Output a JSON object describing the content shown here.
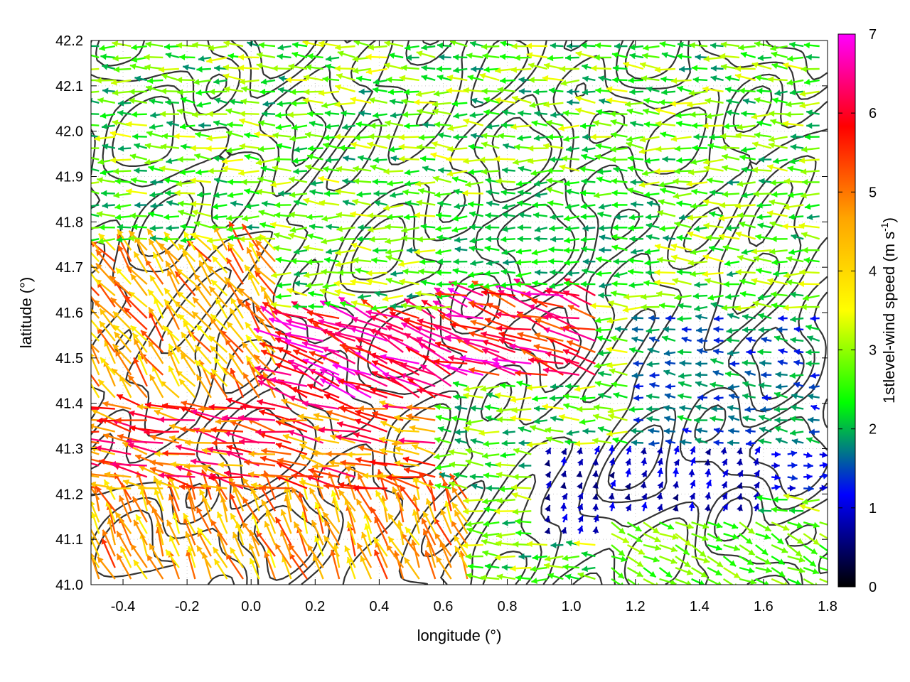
{
  "chart_data": {
    "type": "vector_field_map",
    "x_axis": {
      "label": "longitude (°)",
      "range": [
        -0.5,
        1.8
      ],
      "ticks": [
        -0.4,
        -0.2,
        0.0,
        0.2,
        0.4,
        0.6,
        0.8,
        1.0,
        1.2,
        1.4,
        1.6,
        1.8
      ],
      "tick_labels": [
        "-0.4",
        "-0.2",
        "0.0",
        "0.2",
        "0.4",
        "0.6",
        "0.8",
        "1.0",
        "1.2",
        "1.4",
        "1.6",
        "1.8"
      ]
    },
    "y_axis": {
      "label": "latitude (°)",
      "range": [
        41.0,
        42.2
      ],
      "ticks": [
        41.0,
        41.1,
        41.2,
        41.3,
        41.4,
        41.5,
        41.6,
        41.7,
        41.8,
        41.9,
        42.0,
        42.1,
        42.2
      ],
      "tick_labels": [
        "41.0",
        "41.1",
        "41.2",
        "41.3",
        "41.4",
        "41.5",
        "41.6",
        "41.7",
        "41.8",
        "41.9",
        "42.0",
        "42.1",
        "42.2"
      ]
    },
    "colorbar": {
      "label": "1stlevel-wind speed (m s",
      "label_sup": "-1",
      "label_end": ")",
      "range": [
        0,
        7
      ],
      "ticks": [
        0,
        1,
        2,
        3,
        4,
        5,
        6,
        7
      ],
      "tick_labels": [
        "0",
        "1",
        "2",
        "3",
        "4",
        "5",
        "6",
        "7"
      ],
      "colors": [
        "#000000",
        "#0000ff",
        "#00ff00",
        "#ffff00",
        "#ffa500",
        "#ff0000",
        "#ff00ff"
      ]
    },
    "grid": "dotted",
    "contours": "terrain elevation (dark gray isolines)",
    "wind_regions": [
      {
        "lon": [
          -0.5,
          1.8
        ],
        "lat": [
          41.8,
          42.2
        ],
        "u": -1.0,
        "v": 0.05,
        "speed": [
          1.8,
          3.5
        ]
      },
      {
        "lon": [
          0.6,
          1.3
        ],
        "lat": [
          41.65,
          41.85
        ],
        "u": -1.0,
        "v": 0.0,
        "speed": [
          1.8,
          2.5
        ]
      },
      {
        "lon": [
          -0.5,
          0.1
        ],
        "lat": [
          41.4,
          41.75
        ],
        "u": -0.6,
        "v": 0.8,
        "speed": [
          3.5,
          5.5
        ]
      },
      {
        "lon": [
          0.1,
          0.65
        ],
        "lat": [
          41.4,
          41.6
        ],
        "u": -0.9,
        "v": 0.4,
        "speed": [
          5.5,
          7.0
        ]
      },
      {
        "lon": [
          0.65,
          1.1
        ],
        "lat": [
          41.45,
          41.65
        ],
        "u": -1.0,
        "v": 0.3,
        "speed": [
          5.0,
          7.0
        ]
      },
      {
        "lon": [
          -0.5,
          0.6
        ],
        "lat": [
          41.2,
          41.4
        ],
        "u": -1.0,
        "v": 0.2,
        "speed": [
          4.0,
          6.5
        ]
      },
      {
        "lon": [
          -0.5,
          0.7
        ],
        "lat": [
          41.0,
          41.2
        ],
        "u": -0.4,
        "v": 0.9,
        "speed": [
          3.5,
          5.5
        ]
      },
      {
        "lon": [
          1.2,
          1.8
        ],
        "lat": [
          41.3,
          41.6
        ],
        "u": -1.0,
        "v": 0.1,
        "speed": [
          1.2,
          2.2
        ]
      },
      {
        "lon": [
          0.9,
          1.6
        ],
        "lat": [
          41.1,
          41.3
        ],
        "u": 0.2,
        "v": 0.6,
        "speed": [
          0.5,
          1.2
        ]
      },
      {
        "lon": [
          1.6,
          1.8
        ],
        "lat": [
          41.2,
          41.3
        ],
        "u": 1.0,
        "v": 0.0,
        "speed": [
          0.8,
          1.4
        ]
      },
      {
        "lon": [
          1.1,
          1.8
        ],
        "lat": [
          41.0,
          41.15
        ],
        "u": 1.0,
        "v": -0.5,
        "speed": [
          2.3,
          3.2
        ]
      }
    ]
  }
}
